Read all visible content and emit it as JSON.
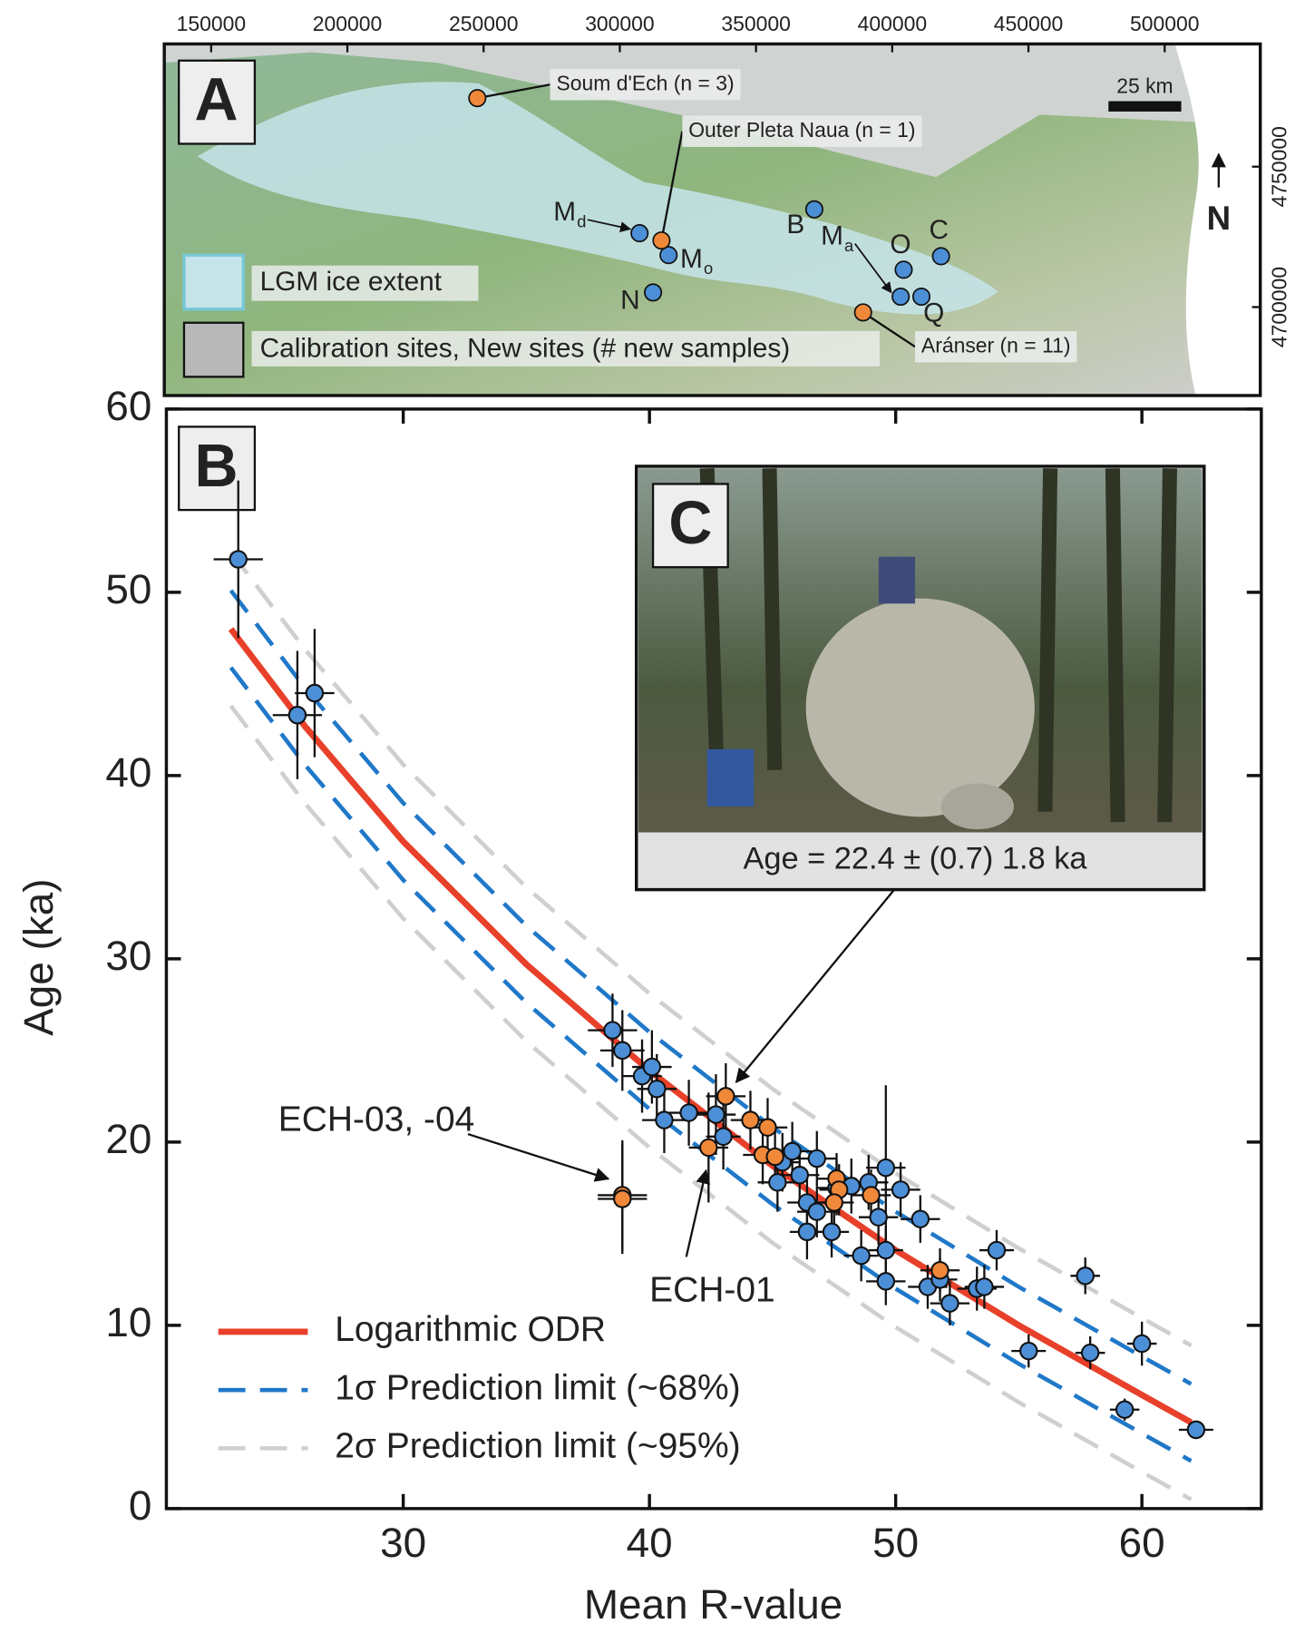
{
  "chart_data": [
    {
      "type": "map",
      "panel": "A",
      "xlim": [
        132800,
        535100
      ],
      "ylim": [
        4668500,
        4793700
      ],
      "xticks": [
        150000,
        200000,
        250000,
        300000,
        350000,
        400000,
        450000,
        500000
      ],
      "yticks": [
        4700000,
        4750000
      ],
      "scale_bar": "25 km",
      "north": "N",
      "legend": [
        "LGM ice extent",
        "Calibration sites, New sites (# new samples)"
      ],
      "series": [
        {
          "color": "#4d8fd6",
          "x": [
            307250,
            317900,
            312200,
            371400,
            404200,
            417900,
            403100,
            410700
          ],
          "values": [
            4726300,
            4718500,
            4705200,
            4734800,
            4713300,
            4718100,
            4703700,
            4703700
          ],
          "labels": [
            {
              "text": "M",
              "sub": "d"
            },
            {
              "text": "M",
              "sub": "o"
            },
            {
              "text": "N"
            },
            {
              "text": "B"
            },
            {
              "text": "O"
            },
            {
              "text": "C"
            },
            {
              "text": "M",
              "sub": "a"
            },
            {
              "text": "Q"
            }
          ]
        },
        {
          "color": "#f0883a",
          "x": [
            247700,
            315300,
            389300
          ],
          "values": [
            4774400,
            4723700,
            4698100
          ],
          "labels": [
            {
              "text": "Soum d'Ech (n = 3)"
            },
            {
              "text": "Outer Pleta Naua (n = 1)"
            },
            {
              "text": "Aránser (n = 11)"
            }
          ]
        }
      ]
    },
    {
      "type": "scatter",
      "panel": "B",
      "x_label": "Mean R-value",
      "y_label": "Age (ka)",
      "xlim": [
        20.38,
        64.85
      ],
      "ylim": [
        0,
        60
      ],
      "xticks": [
        30,
        40,
        50,
        60
      ],
      "yticks": [
        0,
        10,
        20,
        30,
        40,
        50,
        60
      ],
      "curves": [
        {
          "name": "Logarithmic ODR",
          "color": "#e8402a",
          "style": "solid",
          "x": [
            23,
            26,
            30,
            35,
            40,
            45,
            50,
            55,
            60,
            62
          ],
          "values": [
            48.0,
            42.7,
            36.4,
            29.7,
            23.9,
            18.7,
            14.1,
            10.0,
            6.2,
            4.7
          ]
        },
        {
          "name": "1σ Prediction limit (~68%)",
          "color": "#1f78c8",
          "style": "dashed",
          "x": [
            23,
            26,
            30,
            35,
            40,
            45,
            50,
            55,
            60,
            62
          ],
          "upper": [
            50.1,
            44.8,
            38.5,
            31.8,
            26.0,
            20.8,
            16.2,
            12.1,
            8.3,
            6.8
          ],
          "lower": [
            45.9,
            40.6,
            34.3,
            27.6,
            21.8,
            16.6,
            12.0,
            7.9,
            4.1,
            2.6
          ]
        },
        {
          "name": "2σ Prediction limit (~95%)",
          "color": "#cfcfcf",
          "style": "dashed",
          "x": [
            23,
            26,
            30,
            35,
            40,
            45,
            50,
            55,
            60,
            62
          ],
          "upper": [
            52.2,
            46.9,
            40.6,
            33.9,
            28.1,
            22.9,
            18.3,
            14.2,
            10.4,
            8.9
          ],
          "lower": [
            43.8,
            38.5,
            32.2,
            25.5,
            19.7,
            14.5,
            9.9,
            5.8,
            2.0,
            0.5
          ]
        }
      ],
      "series": [
        {
          "color": "#4d8fd6",
          "x": [
            23.3,
            25.7,
            26.4,
            38.5,
            38.9,
            39.7,
            40.1,
            40.3,
            40.6,
            41.6,
            42.7,
            43.0,
            45.4,
            45.2,
            45.8,
            46.1,
            46.8,
            46.4,
            46.4,
            46.8,
            47.4,
            47.6,
            48.2,
            48.6,
            48.9,
            49.3,
            49.6,
            49.6,
            49.6,
            50.2,
            51.0,
            51.3,
            51.8,
            52.2,
            53.3,
            53.6,
            54.1,
            55.4,
            57.7,
            57.9,
            60.0,
            59.3,
            62.2
          ],
          "values": [
            51.8,
            43.3,
            44.5,
            26.1,
            25.0,
            23.6,
            24.1,
            22.9,
            21.2,
            21.6,
            21.5,
            20.3,
            18.9,
            17.8,
            19.5,
            18.2,
            19.1,
            16.7,
            15.1,
            16.2,
            15.1,
            17.5,
            17.6,
            13.8,
            17.8,
            15.9,
            18.6,
            14.1,
            12.4,
            17.4,
            15.8,
            12.1,
            12.5,
            11.2,
            12.0,
            12.1,
            14.1,
            8.6,
            12.7,
            8.5,
            9.0,
            5.4,
            4.3
          ],
          "xerr": [
            1.0,
            1.0,
            0.8,
            1.0,
            0.9,
            0.8,
            0.8,
            0.8,
            0.9,
            0.8,
            0.8,
            0.7,
            0.7,
            0.8,
            0.8,
            0.8,
            0.8,
            0.8,
            0.7,
            0.8,
            0.7,
            0.8,
            0.8,
            0.7,
            0.8,
            0.8,
            0.8,
            0.7,
            0.8,
            0.8,
            0.8,
            0.8,
            0.7,
            0.8,
            0.8,
            0.8,
            0.7,
            0.7,
            0.6,
            0.6,
            0.6,
            0.6,
            0.7
          ],
          "yerr": [
            4.3,
            3.5,
            3.5,
            2.0,
            2.2,
            2.0,
            2.0,
            1.9,
            1.8,
            1.8,
            2.2,
            1.8,
            1.6,
            1.6,
            1.6,
            1.5,
            1.5,
            1.5,
            1.5,
            1.4,
            1.4,
            1.5,
            1.5,
            1.4,
            1.5,
            1.5,
            4.5,
            1.3,
            1.3,
            1.5,
            1.3,
            1.2,
            1.2,
            1.2,
            1.2,
            1.2,
            1.1,
            0.9,
            1.0,
            0.9,
            1.2,
            0.6,
            0.5
          ]
        },
        {
          "color": "#f0883a",
          "x": [
            38.9,
            38.9,
            42.4,
            43.1,
            44.1,
            44.8,
            44.6,
            45.1,
            47.6,
            47.7,
            49.0,
            47.5,
            51.8
          ],
          "values": [
            17.1,
            16.9,
            19.7,
            22.5,
            21.2,
            20.8,
            19.3,
            19.2,
            18.0,
            17.4,
            17.1,
            16.7,
            13.0
          ],
          "xerr": [
            1.0,
            1.0,
            0.8,
            0.8,
            0.8,
            0.8,
            0.8,
            0.8,
            0.8,
            0.8,
            0.8,
            0.8,
            0.8
          ],
          "yerr": [
            3.0,
            3.0,
            3.0,
            1.8,
            1.6,
            1.6,
            1.6,
            1.6,
            1.4,
            1.4,
            1.4,
            1.4,
            1.2
          ]
        }
      ],
      "annotations": [
        "ECH-03, -04",
        "ECH-01"
      ],
      "inset": {
        "panel": "C",
        "caption": "Age = 22.4 ± (0.7) 1.8 ka"
      }
    }
  ]
}
